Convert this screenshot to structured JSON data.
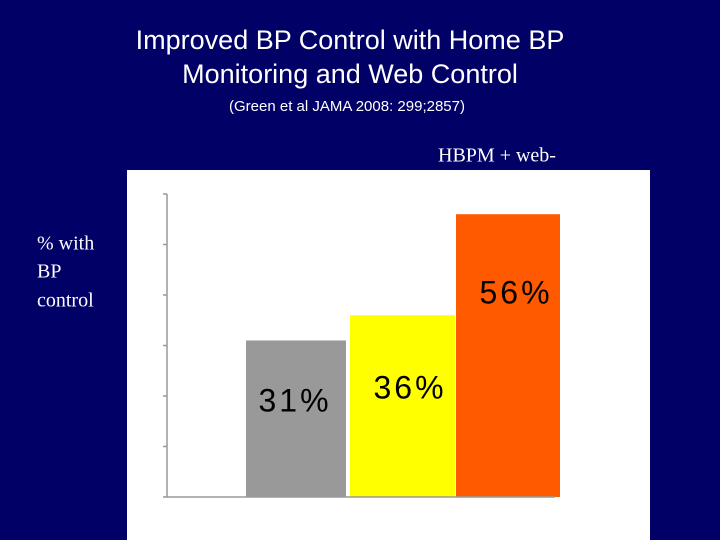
{
  "chart_data": {
    "type": "bar",
    "title": [
      "Improved BP Control with Home BP",
      "Monitoring and Web Control"
    ],
    "subtitle": "(Green et al JAMA 2008: 299;2857)",
    "annotation": "HBPM + web-",
    "y_label": [
      "% with",
      "BP",
      "control"
    ],
    "categories": [
      null,
      null,
      null
    ],
    "values": [
      31,
      36,
      56
    ],
    "value_labels": [
      "31%",
      "36%",
      "56%"
    ],
    "colors": [
      "#999999",
      "#ffff00",
      "#ff5a00"
    ],
    "ylim": [
      0,
      60
    ],
    "yticks": [
      0,
      10,
      20,
      30,
      40,
      50,
      60
    ]
  }
}
